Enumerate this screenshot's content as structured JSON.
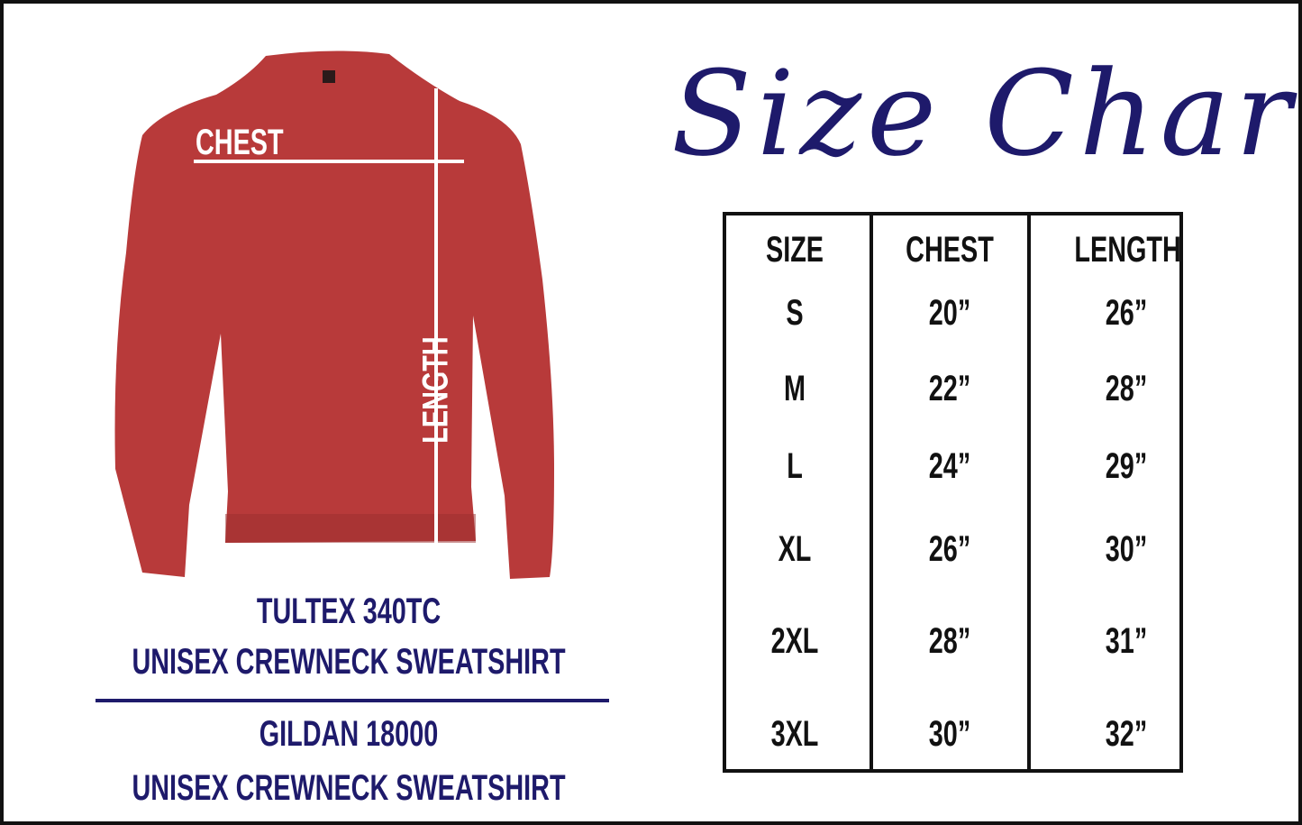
{
  "title": "Size Chart",
  "colors": {
    "navy": "#1e1a6b",
    "shirt": "#b83a3a",
    "text": "#111111"
  },
  "illustration": {
    "chest_label": "CHEST",
    "length_label": "LENGTH"
  },
  "products": [
    {
      "model": "TULTEX 340TC",
      "description": "UNISEX CREWNECK SWEATSHIRT"
    },
    {
      "model": "GILDAN 18000",
      "description": "UNISEX CREWNECK SWEATSHIRT"
    }
  ],
  "table": {
    "headers": [
      "SIZE",
      "CHEST",
      "LENGTH"
    ],
    "rows": [
      [
        "S",
        "20”",
        "26”"
      ],
      [
        "M",
        "22”",
        "28”"
      ],
      [
        "L",
        "24”",
        "29”"
      ],
      [
        "XL",
        "26”",
        "30”"
      ],
      [
        "2XL",
        "28”",
        "31”"
      ],
      [
        "3XL",
        "30”",
        "32”"
      ]
    ]
  }
}
